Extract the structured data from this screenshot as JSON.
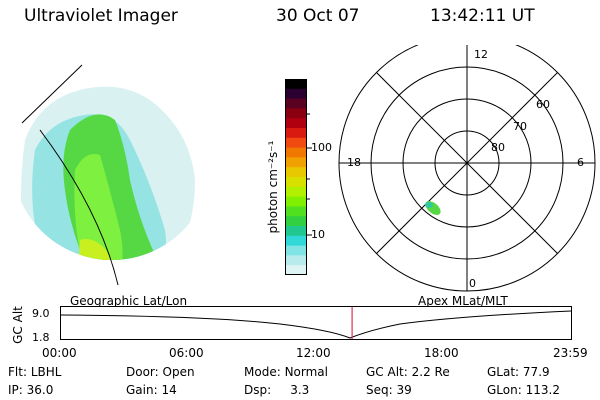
{
  "header": {
    "title": "Ultraviolet Imager",
    "date": "30 Oct 07",
    "time": "13:42:11 UT"
  },
  "colorbar": {
    "unit_label": "photon cm⁻²s⁻¹",
    "ticks": [
      "100",
      "10"
    ],
    "colors": [
      "#000000",
      "#2b0030",
      "#5a0020",
      "#8a0010",
      "#b00010",
      "#d81a10",
      "#f04a10",
      "#f07800",
      "#f0a000",
      "#e8c800",
      "#d8e000",
      "#b0f000",
      "#80f000",
      "#50e020",
      "#30d040",
      "#20c890",
      "#30d8d8",
      "#80e4e4",
      "#b8ecec",
      "#dff4f4"
    ]
  },
  "geo_image": {
    "label": "Geographic Lat/Lon"
  },
  "polar_plot": {
    "label": "Apex MLat/MLT",
    "lat_labels": [
      "60",
      "70",
      "80"
    ],
    "mlt_labels": {
      "top": "12",
      "left": "18",
      "right": "6",
      "bottom": "0"
    }
  },
  "altitude_plot": {
    "ylabel": "GC Alt",
    "yticks": [
      "9.0",
      "1.8"
    ],
    "xticks": [
      "00:00",
      "06:00",
      "12:00",
      "18:00",
      "23:59"
    ],
    "current_time_hours": 13.7
  },
  "status": {
    "row1": [
      {
        "key": "Flt:",
        "val": "LBHL"
      },
      {
        "key": "Door:",
        "val": "Open"
      },
      {
        "key": "Mode:",
        "val": "Normal"
      },
      {
        "key": "GC Alt:",
        "val": "2.2 Re"
      },
      {
        "key": "GLat:",
        "val": "77.9"
      }
    ],
    "row2": [
      {
        "key": "IP:",
        "val": "36.0"
      },
      {
        "key": "Gain:",
        "val": "14"
      },
      {
        "key": "Dsp:",
        "val": "3.3"
      },
      {
        "key": "Seq:",
        "val": "39"
      },
      {
        "key": "GLon:",
        "val": "113.2"
      }
    ]
  }
}
